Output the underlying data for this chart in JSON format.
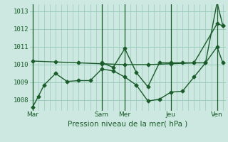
{
  "xlabel": "Pression niveau de la mer( hPa )",
  "bg_color": "#cce8e0",
  "grid_color": "#99ccbb",
  "line_color": "#1a5c2a",
  "ylim": [
    1007.4,
    1013.4
  ],
  "yticks": [
    1008,
    1009,
    1010,
    1011,
    1012,
    1013
  ],
  "day_labels": [
    "Mar",
    "Sam",
    "Mer",
    "Jeu",
    "Ven"
  ],
  "day_positions": [
    0,
    12,
    16,
    24,
    32
  ],
  "series1_x": [
    0,
    4,
    8,
    12,
    16,
    20,
    24,
    28,
    32,
    33
  ],
  "series1_y": [
    1010.2,
    1010.15,
    1010.1,
    1010.05,
    1010.0,
    1010.0,
    1010.05,
    1010.1,
    1012.3,
    1012.2
  ],
  "series2_x": [
    0,
    1,
    2,
    4,
    6,
    8,
    10,
    12,
    14,
    16,
    18,
    20,
    22,
    24,
    26,
    28,
    30,
    32,
    33
  ],
  "series2_y": [
    1007.6,
    1008.2,
    1008.85,
    1009.5,
    1009.05,
    1009.1,
    1009.1,
    1009.75,
    1009.65,
    1009.3,
    1008.85,
    1007.95,
    1008.05,
    1008.45,
    1008.5,
    1009.3,
    1010.1,
    1013.5,
    1012.2
  ],
  "series3_x": [
    12,
    14,
    16,
    18,
    20,
    22,
    24,
    26,
    28,
    30,
    32,
    33
  ],
  "series3_y": [
    1010.1,
    1009.85,
    1010.9,
    1009.55,
    1008.75,
    1010.1,
    1010.1,
    1010.1,
    1010.1,
    1010.1,
    1011.0,
    1010.1
  ],
  "vline_positions": [
    0,
    12,
    16,
    24,
    32
  ]
}
